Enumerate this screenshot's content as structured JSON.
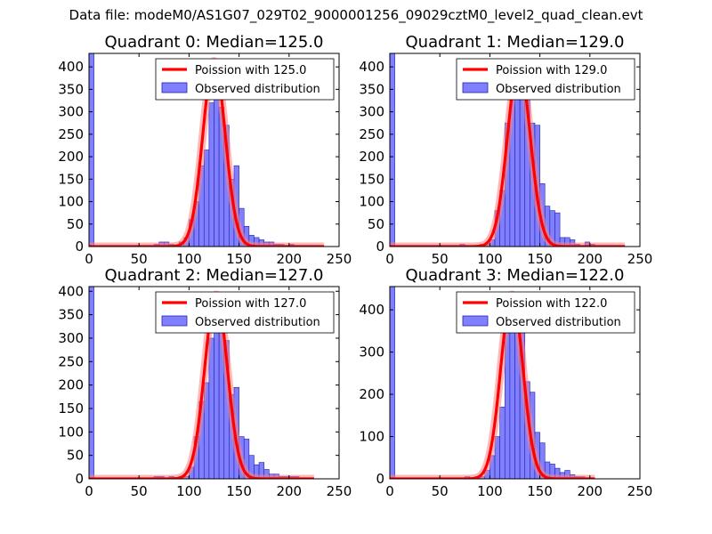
{
  "figure": {
    "suptitle": "Data file: modeM0/AS1G07_029T02_9000001256_09029cztM0_level2_quad_clean.evt"
  },
  "colors": {
    "bar_fill": "#8080ff",
    "bar_edge": "#2020b0",
    "curve": "#ff0000",
    "curve_halo": "#ff8080"
  },
  "chart_data": [
    {
      "type": "bar",
      "title": "Quadrant 0: Median=125.0",
      "xlim": [
        0,
        250
      ],
      "ylim": [
        0,
        430
      ],
      "xticks": [
        0,
        50,
        100,
        150,
        200,
        250
      ],
      "yticks": [
        0,
        50,
        100,
        150,
        200,
        250,
        300,
        350,
        400
      ],
      "bin_width": 5,
      "bins": [
        {
          "x": 0,
          "h": 430
        },
        {
          "x": 65,
          "h": 5
        },
        {
          "x": 70,
          "h": 10
        },
        {
          "x": 75,
          "h": 10
        },
        {
          "x": 80,
          "h": 5
        },
        {
          "x": 90,
          "h": 10
        },
        {
          "x": 95,
          "h": 20
        },
        {
          "x": 100,
          "h": 60
        },
        {
          "x": 105,
          "h": 100
        },
        {
          "x": 110,
          "h": 180
        },
        {
          "x": 115,
          "h": 215
        },
        {
          "x": 120,
          "h": 320
        },
        {
          "x": 125,
          "h": 345
        },
        {
          "x": 130,
          "h": 310
        },
        {
          "x": 135,
          "h": 270
        },
        {
          "x": 140,
          "h": 150
        },
        {
          "x": 145,
          "h": 180
        },
        {
          "x": 150,
          "h": 85
        },
        {
          "x": 155,
          "h": 45
        },
        {
          "x": 160,
          "h": 25
        },
        {
          "x": 165,
          "h": 20
        },
        {
          "x": 170,
          "h": 15
        },
        {
          "x": 175,
          "h": 10
        },
        {
          "x": 180,
          "h": 10
        },
        {
          "x": 185,
          "h": 5
        },
        {
          "x": 190,
          "h": 5
        },
        {
          "x": 200,
          "h": 5
        }
      ],
      "fit": {
        "mean": 125.0,
        "peak": 413,
        "x_range": [
          0,
          235
        ]
      },
      "legend": {
        "line_label": "Poission with 125.0",
        "bar_label": "Observed distribution",
        "position": "upper right"
      }
    },
    {
      "type": "bar",
      "title": "Quadrant 1: Median=129.0",
      "xlim": [
        0,
        250
      ],
      "ylim": [
        0,
        430
      ],
      "xticks": [
        0,
        50,
        100,
        150,
        200,
        250
      ],
      "yticks": [
        0,
        50,
        100,
        150,
        200,
        250,
        300,
        350,
        400
      ],
      "bin_width": 5,
      "bins": [
        {
          "x": 0,
          "h": 430
        },
        {
          "x": 70,
          "h": 5
        },
        {
          "x": 90,
          "h": 5
        },
        {
          "x": 95,
          "h": 5
        },
        {
          "x": 100,
          "h": 15
        },
        {
          "x": 105,
          "h": 80
        },
        {
          "x": 110,
          "h": 125
        },
        {
          "x": 115,
          "h": 275
        },
        {
          "x": 120,
          "h": 330
        },
        {
          "x": 125,
          "h": 370
        },
        {
          "x": 130,
          "h": 405
        },
        {
          "x": 135,
          "h": 325
        },
        {
          "x": 140,
          "h": 275
        },
        {
          "x": 145,
          "h": 270
        },
        {
          "x": 150,
          "h": 140
        },
        {
          "x": 155,
          "h": 90
        },
        {
          "x": 160,
          "h": 80
        },
        {
          "x": 165,
          "h": 75
        },
        {
          "x": 170,
          "h": 20
        },
        {
          "x": 175,
          "h": 20
        },
        {
          "x": 180,
          "h": 15
        },
        {
          "x": 185,
          "h": 5
        },
        {
          "x": 195,
          "h": 10
        },
        {
          "x": 200,
          "h": 5
        }
      ],
      "fit": {
        "mean": 129.0,
        "peak": 407,
        "x_range": [
          0,
          235
        ]
      },
      "legend": {
        "line_label": "Poission with 129.0",
        "bar_label": "Observed distribution",
        "position": "upper right"
      }
    },
    {
      "type": "bar",
      "title": "Quadrant 2: Median=127.0",
      "xlim": [
        0,
        250
      ],
      "ylim": [
        0,
        410
      ],
      "xticks": [
        0,
        50,
        100,
        150,
        200,
        250
      ],
      "yticks": [
        0,
        50,
        100,
        150,
        200,
        250,
        300,
        350,
        400
      ],
      "bin_width": 5,
      "bins": [
        {
          "x": 0,
          "h": 410
        },
        {
          "x": 65,
          "h": 5
        },
        {
          "x": 70,
          "h": 5
        },
        {
          "x": 80,
          "h": 5
        },
        {
          "x": 90,
          "h": 5
        },
        {
          "x": 95,
          "h": 5
        },
        {
          "x": 100,
          "h": 25
        },
        {
          "x": 105,
          "h": 90
        },
        {
          "x": 110,
          "h": 165
        },
        {
          "x": 115,
          "h": 205
        },
        {
          "x": 120,
          "h": 300
        },
        {
          "x": 125,
          "h": 375
        },
        {
          "x": 130,
          "h": 360
        },
        {
          "x": 135,
          "h": 295
        },
        {
          "x": 140,
          "h": 180
        },
        {
          "x": 145,
          "h": 195
        },
        {
          "x": 150,
          "h": 90
        },
        {
          "x": 155,
          "h": 85
        },
        {
          "x": 160,
          "h": 50
        },
        {
          "x": 165,
          "h": 30
        },
        {
          "x": 170,
          "h": 35
        },
        {
          "x": 175,
          "h": 20
        },
        {
          "x": 180,
          "h": 10
        },
        {
          "x": 185,
          "h": 10
        },
        {
          "x": 190,
          "h": 5
        },
        {
          "x": 195,
          "h": 5
        },
        {
          "x": 200,
          "h": 5
        },
        {
          "x": 205,
          "h": 5
        }
      ],
      "fit": {
        "mean": 127.0,
        "peak": 393,
        "x_range": [
          0,
          225
        ]
      },
      "legend": {
        "line_label": "Poission with 127.0",
        "bar_label": "Observed distribution",
        "position": "upper right"
      }
    },
    {
      "type": "bar",
      "title": "Quadrant 3: Median=122.0",
      "xlim": [
        0,
        250
      ],
      "ylim": [
        0,
        455
      ],
      "xticks": [
        0,
        50,
        100,
        150,
        200,
        250
      ],
      "yticks": [
        0,
        100,
        200,
        300,
        400
      ],
      "bin_width": 5,
      "bins": [
        {
          "x": 0,
          "h": 455
        },
        {
          "x": 75,
          "h": 5
        },
        {
          "x": 85,
          "h": 5
        },
        {
          "x": 90,
          "h": 5
        },
        {
          "x": 95,
          "h": 20
        },
        {
          "x": 100,
          "h": 55
        },
        {
          "x": 105,
          "h": 100
        },
        {
          "x": 110,
          "h": 170
        },
        {
          "x": 115,
          "h": 345
        },
        {
          "x": 120,
          "h": 395
        },
        {
          "x": 125,
          "h": 410
        },
        {
          "x": 130,
          "h": 355
        },
        {
          "x": 135,
          "h": 230
        },
        {
          "x": 140,
          "h": 205
        },
        {
          "x": 145,
          "h": 110
        },
        {
          "x": 150,
          "h": 85
        },
        {
          "x": 155,
          "h": 40
        },
        {
          "x": 160,
          "h": 35
        },
        {
          "x": 165,
          "h": 25
        },
        {
          "x": 170,
          "h": 15
        },
        {
          "x": 175,
          "h": 20
        },
        {
          "x": 180,
          "h": 10
        },
        {
          "x": 185,
          "h": 5
        },
        {
          "x": 190,
          "h": 5
        }
      ],
      "fit": {
        "mean": 122.0,
        "peak": 436,
        "x_range": [
          0,
          205
        ]
      },
      "legend": {
        "line_label": "Poission with 122.0",
        "bar_label": "Observed distribution",
        "position": "upper right"
      }
    }
  ]
}
